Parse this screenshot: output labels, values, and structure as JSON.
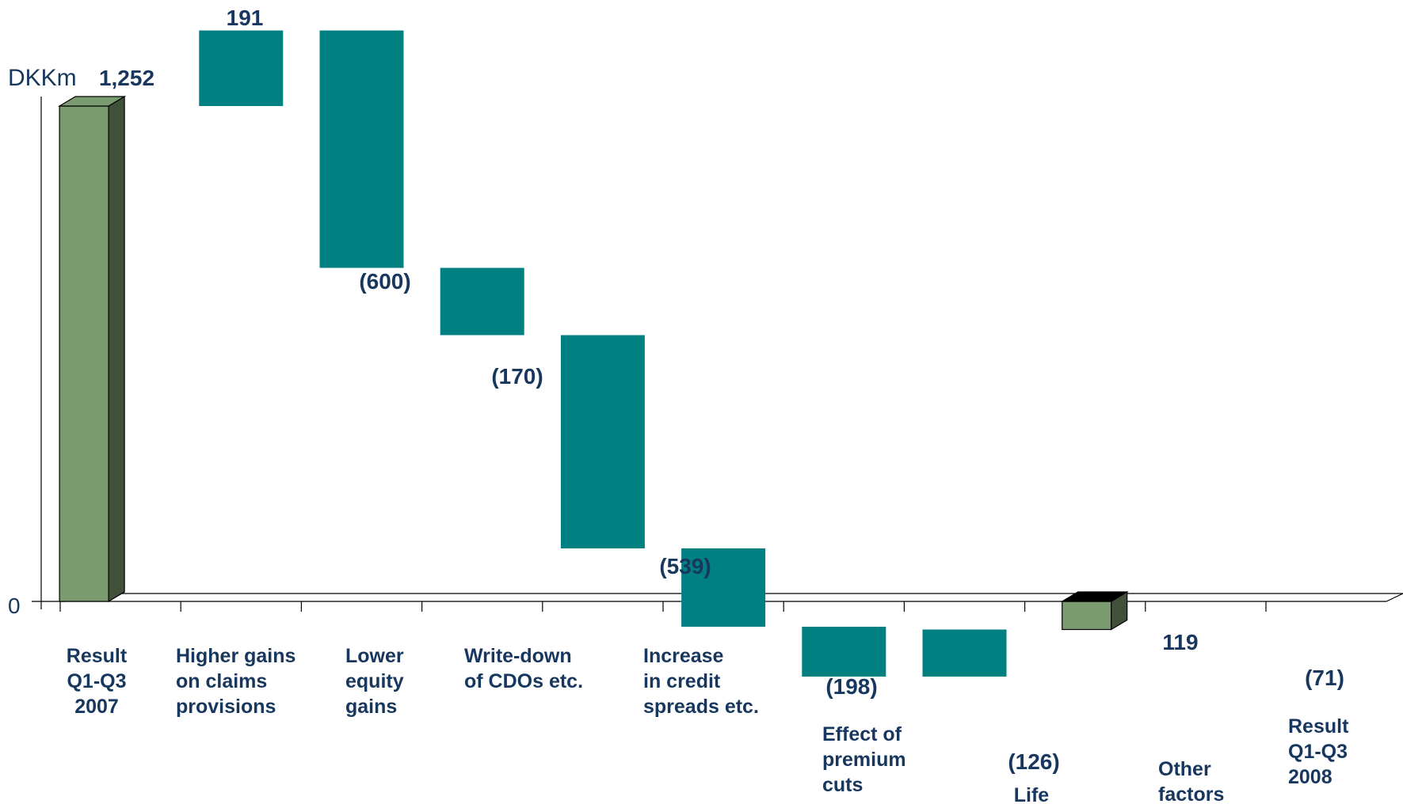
{
  "chart_data": {
    "type": "waterfall",
    "unit_label": "DKKm",
    "y_zero_label": "0",
    "categories": [
      {
        "label": [
          "Result",
          "Q1-Q3",
          "2007"
        ],
        "value": 1252,
        "kind": "total",
        "value_label": "1,252"
      },
      {
        "label": [
          "Higher gains",
          "on claims",
          "provisions"
        ],
        "value": 191,
        "kind": "delta",
        "value_label": "191"
      },
      {
        "label": [
          "Lower",
          "equity",
          "gains"
        ],
        "value": -600,
        "kind": "delta",
        "value_label": "(600)"
      },
      {
        "label": [
          "Write-down",
          "of CDOs etc."
        ],
        "value": -170,
        "kind": "delta",
        "value_label": "(170)"
      },
      {
        "label": [
          "Increase",
          "in credit",
          "spreads etc."
        ],
        "value": -539,
        "kind": "delta",
        "value_label": "(539)"
      },
      {
        "label": [
          "Effect of",
          "premium",
          "cuts"
        ],
        "value": -198,
        "kind": "delta",
        "value_label": "(198)"
      },
      {
        "label": [
          "Life"
        ],
        "value": -126,
        "kind": "delta",
        "value_label": "(126)"
      },
      {
        "label": [
          "Other",
          "factors"
        ],
        "value": 119,
        "kind": "delta",
        "value_label": "119"
      },
      {
        "label": [
          "Result",
          "Q1-Q3",
          "2008"
        ],
        "value": -71,
        "kind": "total",
        "value_label": "(71)"
      }
    ],
    "colors": {
      "total_front": "#7a9a70",
      "total_side": "#415039",
      "total_top_negative": "#000000",
      "delta": "#008080",
      "text": "#17375e",
      "axis": "#000000"
    }
  }
}
